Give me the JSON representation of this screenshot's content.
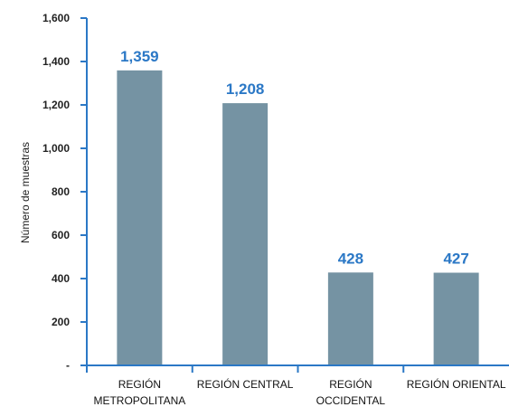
{
  "colors": {
    "bar": "#7593a3",
    "axis": "#2b78c6",
    "value_label": "#2b78c6"
  },
  "chart_data": {
    "type": "bar",
    "title": "",
    "xlabel": "",
    "ylabel": "Número de muestras",
    "ylim": [
      0,
      1600
    ],
    "yticks": [
      0,
      200,
      400,
      600,
      800,
      1000,
      1200,
      1400,
      1600
    ],
    "ytick_labels": [
      "-",
      "200",
      "400",
      "600",
      "800",
      "1,000",
      "1,200",
      "1,400",
      "1,600"
    ],
    "categories": [
      [
        "REGIÓN",
        "METROPOLITANA"
      ],
      [
        "REGIÓN CENTRAL"
      ],
      [
        "REGIÓN",
        "OCCIDENTAL"
      ],
      [
        "REGIÓN ORIENTAL"
      ]
    ],
    "values": [
      1359,
      1208,
      428,
      427
    ],
    "value_labels": [
      "1,359",
      "1,208",
      "428",
      "427"
    ],
    "grid": false
  }
}
